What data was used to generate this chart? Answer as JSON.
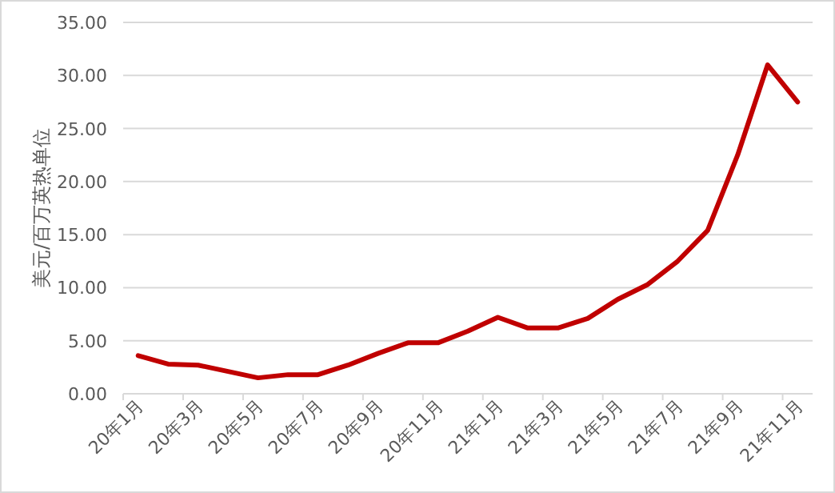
{
  "chart_data": {
    "type": "line",
    "ylabel": "美元/百万英热单位",
    "categories": [
      "20年1月",
      null,
      "20年3月",
      null,
      "20年5月",
      null,
      "20年7月",
      null,
      "20年9月",
      null,
      "20年11月",
      null,
      "21年1月",
      null,
      "21年3月",
      null,
      "21年5月",
      null,
      "21年7月",
      null,
      "21年9月",
      null,
      "21年11月"
    ],
    "series": [
      {
        "color": "#c00000",
        "values": [
          3.6,
          2.8,
          2.7,
          2.1,
          1.5,
          1.8,
          1.8,
          2.7,
          3.8,
          4.8,
          4.8,
          5.9,
          7.2,
          6.2,
          6.2,
          7.1,
          8.9,
          10.3,
          12.5,
          15.4,
          22.5,
          31.0,
          27.5
        ]
      }
    ],
    "ylim": [
      0,
      35
    ],
    "yticks": [
      {
        "value": 0,
        "label": "0.00"
      },
      {
        "value": 5,
        "label": "5.00"
      },
      {
        "value": 10,
        "label": "10.00"
      },
      {
        "value": 15,
        "label": "15.00"
      },
      {
        "value": 20,
        "label": "20.00"
      },
      {
        "value": 25,
        "label": "25.00"
      },
      {
        "value": 30,
        "label": "30.00"
      },
      {
        "value": 35,
        "label": "35.00"
      }
    ],
    "grid": "y"
  }
}
